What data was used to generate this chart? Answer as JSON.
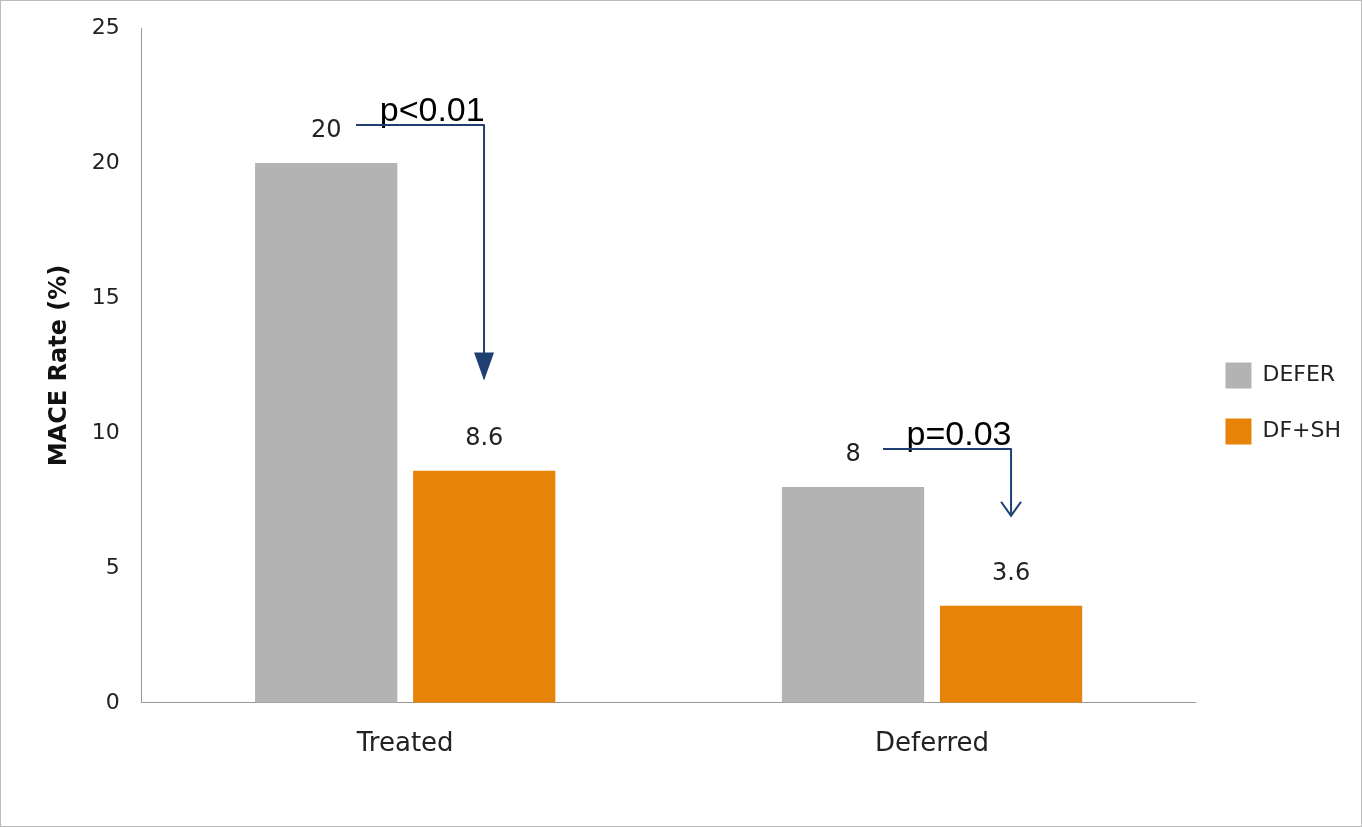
{
  "chart_data": {
    "type": "bar",
    "ylabel": "MACE Rate (%)",
    "categories": [
      "Treated",
      "Deferred"
    ],
    "series": [
      {
        "name": "DEFER",
        "color": "#b3b3b3",
        "values": [
          20,
          8
        ]
      },
      {
        "name": "DF+SH",
        "color": "#e8830a",
        "values": [
          8.6,
          3.6
        ]
      }
    ],
    "ylim": [
      0,
      25
    ],
    "yticks": [
      0,
      5,
      10,
      15,
      20,
      25
    ],
    "grid": false,
    "legend": "right",
    "data_labels": true,
    "annotations": [
      "p<0.01",
      "p=0.03"
    ]
  }
}
